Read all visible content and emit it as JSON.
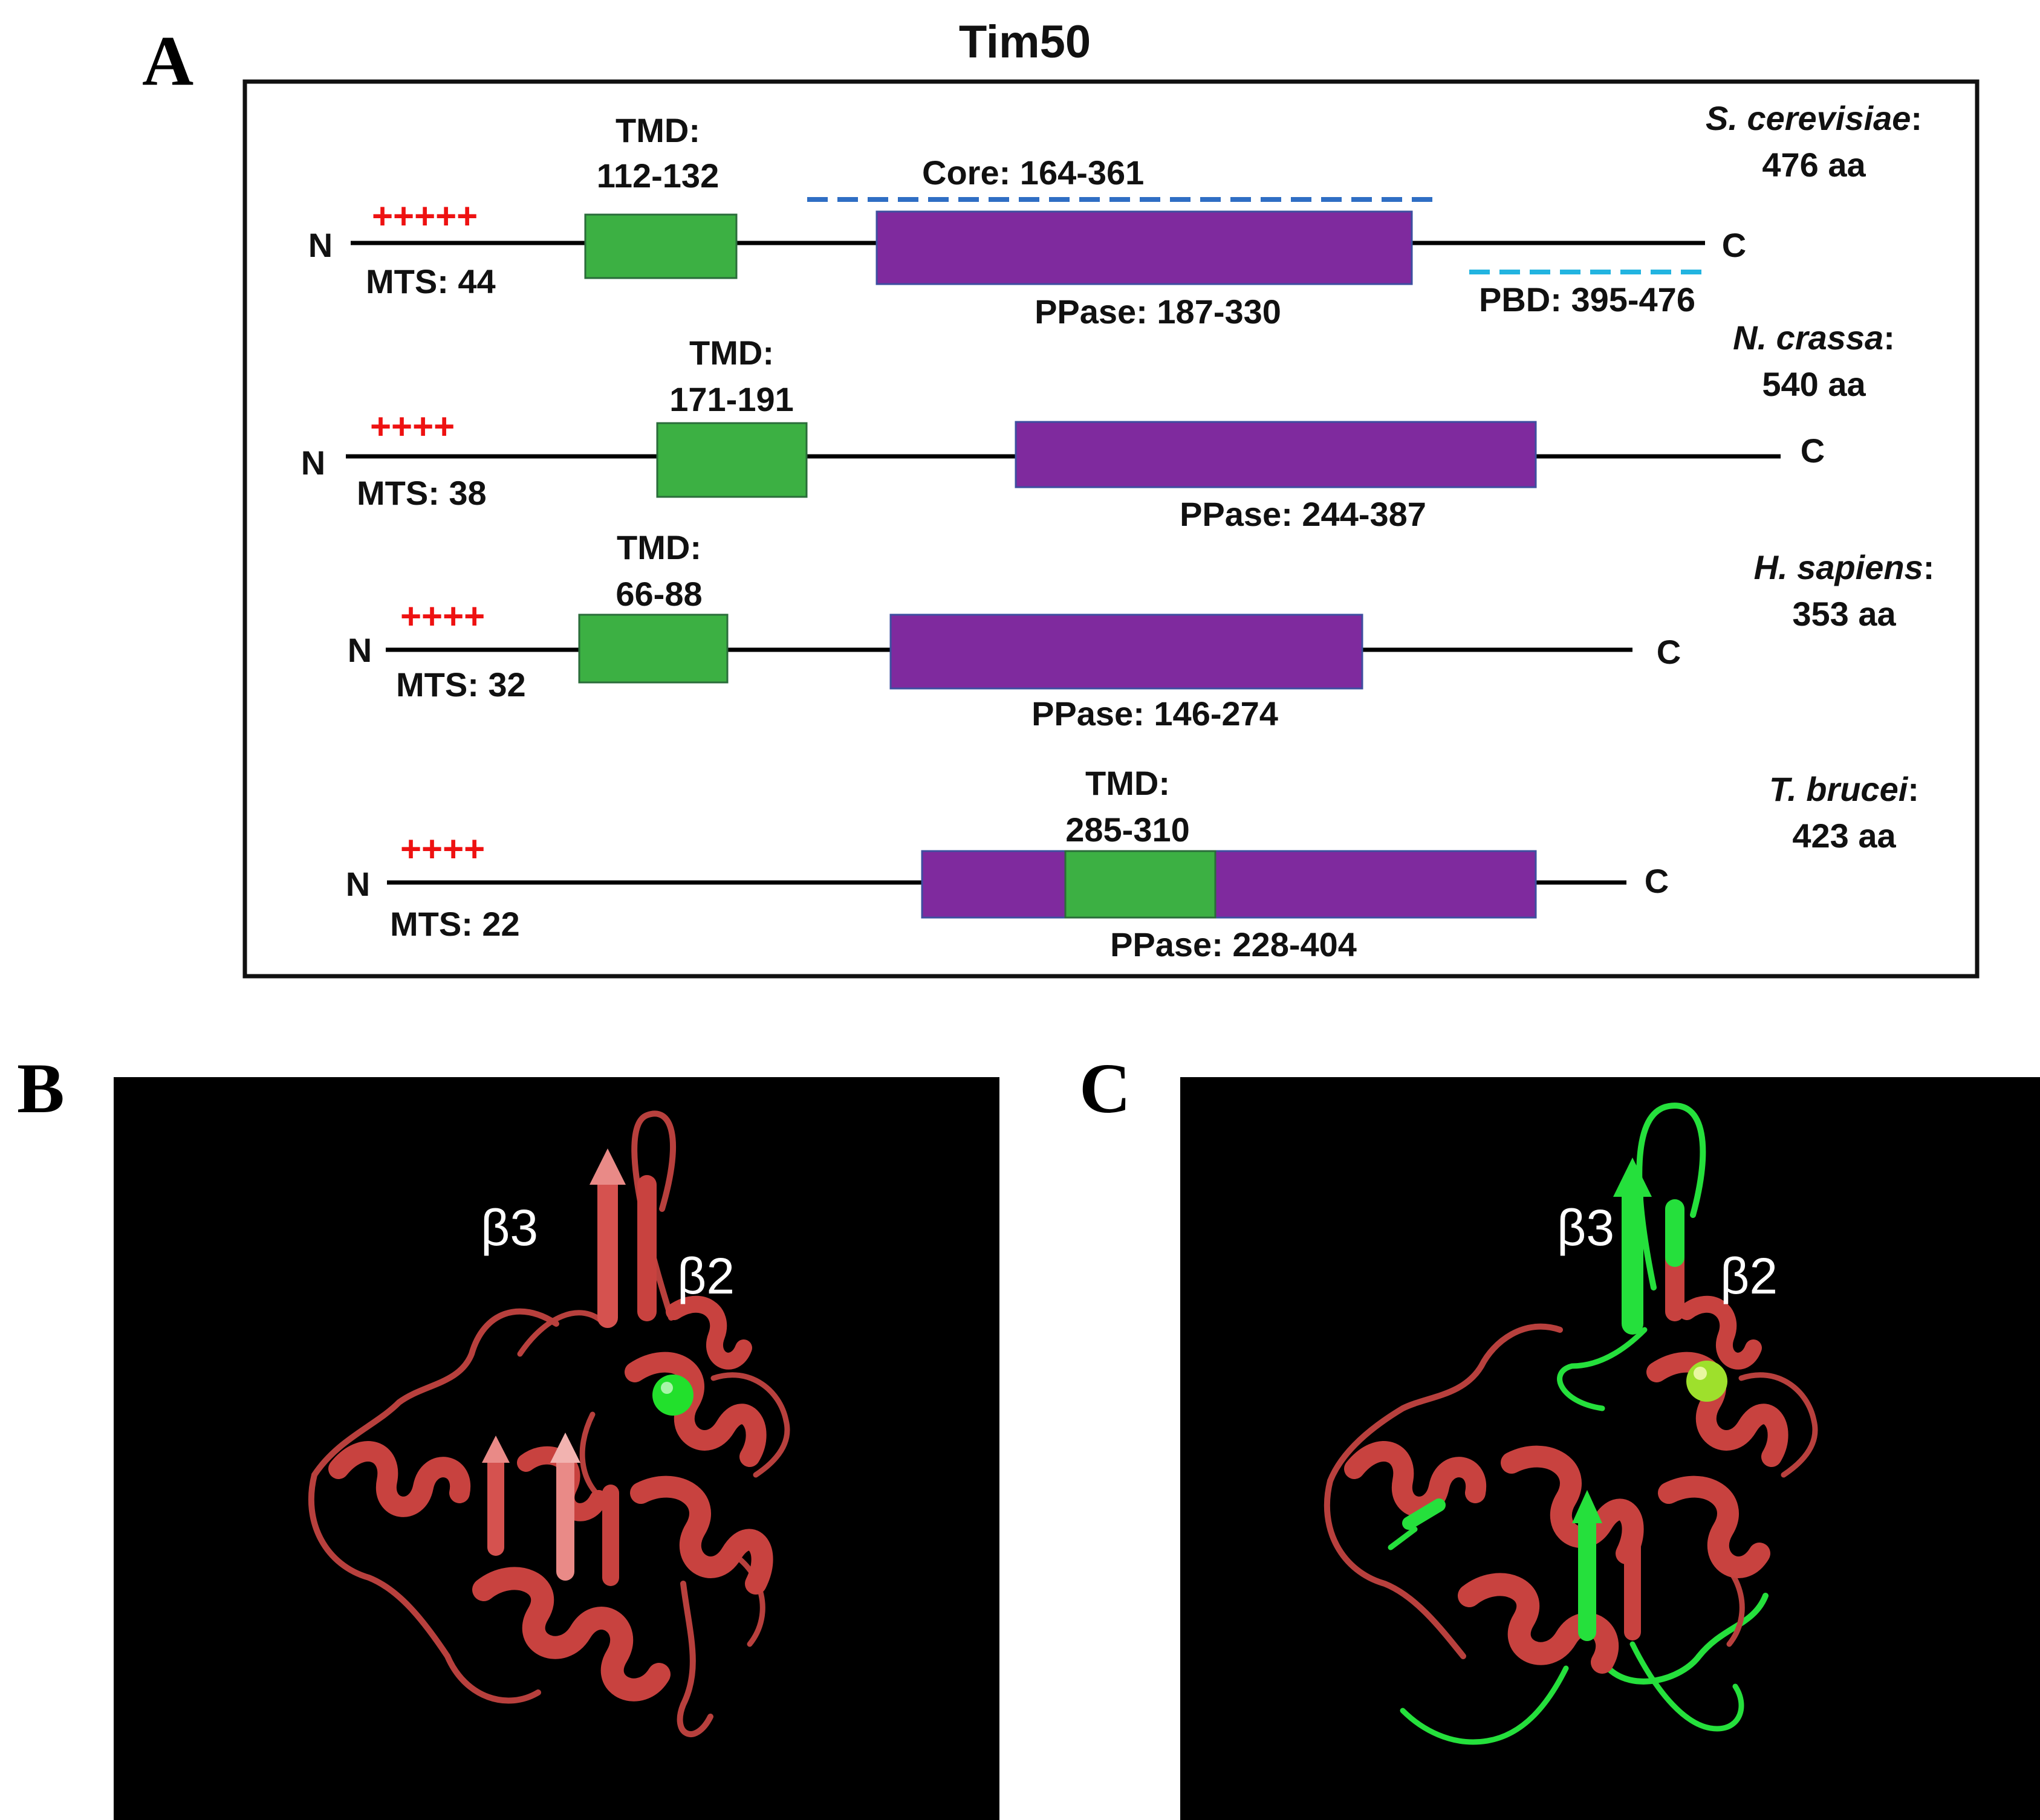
{
  "figure": {
    "panel_labels": {
      "a": "A",
      "b": "B",
      "c": "C"
    },
    "title": "Tim50",
    "colors": {
      "tmd": "#3cb043",
      "ppase": "#7f2a9e",
      "core_line": "#2f6ec4",
      "pbd_line": "#22b4e0",
      "mts_plus": "#ee1111",
      "protein": "#c8423f",
      "highlight": "#25e03c"
    },
    "proteins": [
      {
        "species_italic": "S. cerevisiae",
        "length": "476 aa",
        "n_label": "N",
        "c_label": "C",
        "mts_plus": "+++++",
        "mts": "MTS: 44",
        "tmd_label": "TMD:",
        "tmd_range": "112-132",
        "ppase": "PPase: 187-330",
        "core": "Core: 164-361",
        "pbd": "PBD: 395-476"
      },
      {
        "species_italic": "N. crassa",
        "length": "540 aa",
        "n_label": "N",
        "c_label": "C",
        "mts_plus": "++++",
        "mts": "MTS: 38",
        "tmd_label": "TMD:",
        "tmd_range": "171-191",
        "ppase": "PPase: 244-387"
      },
      {
        "species_italic": "H. sapiens",
        "length": "353 aa",
        "n_label": "N",
        "c_label": "C",
        "mts_plus": "++++",
        "mts": "MTS: 32",
        "tmd_label": "TMD:",
        "tmd_range": "66-88",
        "ppase": "PPase: 146-274"
      },
      {
        "species_italic": "T. brucei",
        "length": "423 aa",
        "n_label": "N",
        "c_label": "C",
        "mts_plus": "++++",
        "mts": "MTS: 22",
        "tmd_label": "TMD:",
        "tmd_range": "285-310",
        "ppase": "PPase: 228-404"
      }
    ],
    "structure_labels": {
      "beta3": "β3",
      "beta2": "β2"
    }
  }
}
